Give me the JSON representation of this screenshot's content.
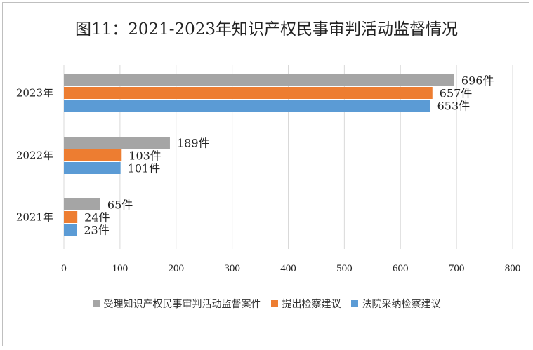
{
  "chart_data": {
    "type": "bar",
    "orientation": "horizontal",
    "title": "图11：2021-2023年知识产权民事审判活动监督情况",
    "categories": [
      "2023年",
      "2022年",
      "2021年"
    ],
    "series": [
      {
        "name": "受理知识产权民事审判活动监督案件",
        "values": [
          696,
          189,
          65
        ],
        "color": "#a5a5a5"
      },
      {
        "name": "提出检察建议",
        "values": [
          657,
          103,
          24
        ],
        "color": "#ed7d31"
      },
      {
        "name": "法院采纳检察建议",
        "values": [
          653,
          101,
          23
        ],
        "color": "#5b9bd5"
      }
    ],
    "value_suffix": "件",
    "xlim": [
      0,
      800
    ],
    "xticks": [
      0,
      100,
      200,
      300,
      400,
      500,
      600,
      700,
      800
    ],
    "grid": "vertical",
    "legend_position": "bottom"
  }
}
